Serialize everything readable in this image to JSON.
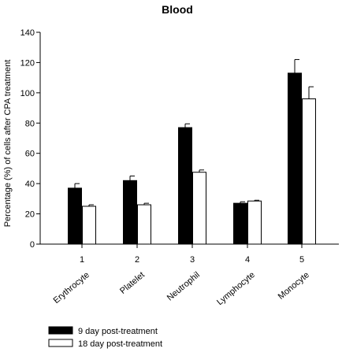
{
  "chart_data": {
    "type": "bar",
    "title": "Blood",
    "xlabel": "",
    "ylabel": "Percentage (%) of cells after CPA treatment",
    "ylim": [
      0,
      140
    ],
    "yticks": [
      0,
      20,
      40,
      60,
      80,
      100,
      120,
      140
    ],
    "categories": [
      "1",
      "2",
      "3",
      "4",
      "5"
    ],
    "category_labels": [
      "Erythrocyte",
      "Platelet",
      "Neutrophil",
      "Lymphocyte",
      "Monocyte"
    ],
    "series": [
      {
        "name": "9 day post-treatment",
        "color": "#000000",
        "values": [
          37,
          42,
          77,
          27,
          113
        ],
        "errors": [
          3,
          3,
          2.5,
          1,
          9
        ]
      },
      {
        "name": "18 day post-treatment",
        "color": "#ffffff",
        "values": [
          25,
          26,
          47.5,
          28.5,
          96
        ],
        "errors": [
          1,
          1,
          1.5,
          0.5,
          8
        ]
      }
    ],
    "legend_position": "bottom-left",
    "grid": false
  }
}
